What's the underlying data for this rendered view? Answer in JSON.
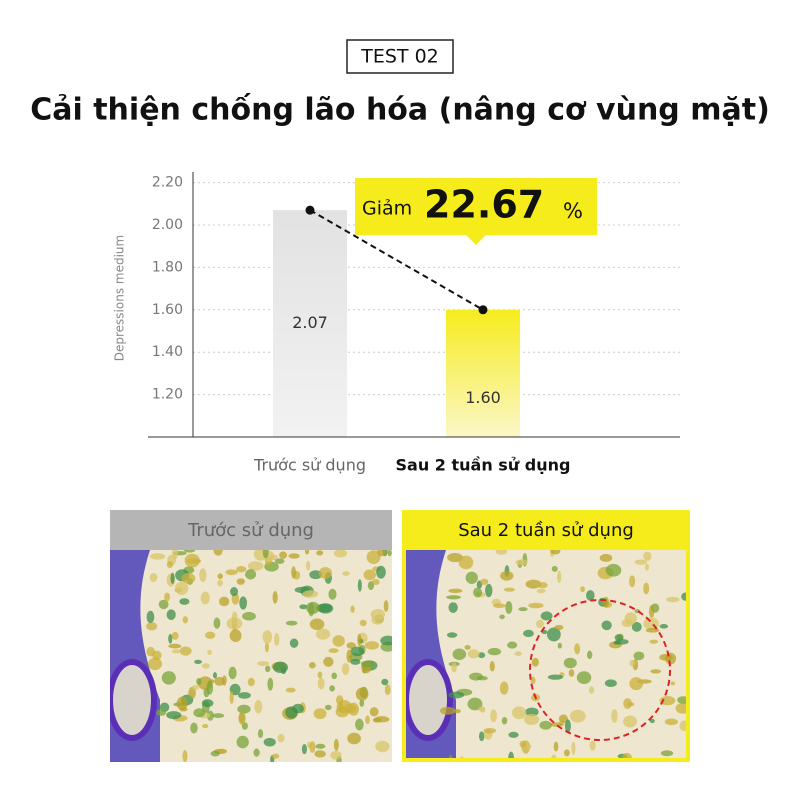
{
  "header": {
    "badge": "TEST 02",
    "title": "Cải thiện chống lão hóa (nâng cơ vùng mặt)"
  },
  "chart_data": {
    "type": "bar",
    "y_label": "Depressions medium",
    "categories": [
      "Trước sử dụng",
      "Sau 2 tuần sử dụng"
    ],
    "values": [
      2.07,
      1.6
    ],
    "value_labels": [
      "2.07",
      "1.60"
    ],
    "colors": [
      "#e4e4e4",
      "#f6ec2a"
    ],
    "ylim": [
      1.0,
      2.25
    ],
    "yticks": [
      {
        "value": 1.2,
        "label": "1.20"
      },
      {
        "value": 1.4,
        "label": "1.40"
      },
      {
        "value": 1.6,
        "label": "1.60"
      },
      {
        "value": 1.8,
        "label": "1.80"
      },
      {
        "value": 2.0,
        "label": "2.00"
      },
      {
        "value": 2.2,
        "label": "2.20"
      }
    ],
    "grid": true,
    "annotation": {
      "prefix": "Giảm",
      "value": "22.67",
      "suffix": "%"
    }
  },
  "photos": {
    "before": "Trước sử dụng",
    "after": "Sau 2 tuần sử dụng"
  }
}
